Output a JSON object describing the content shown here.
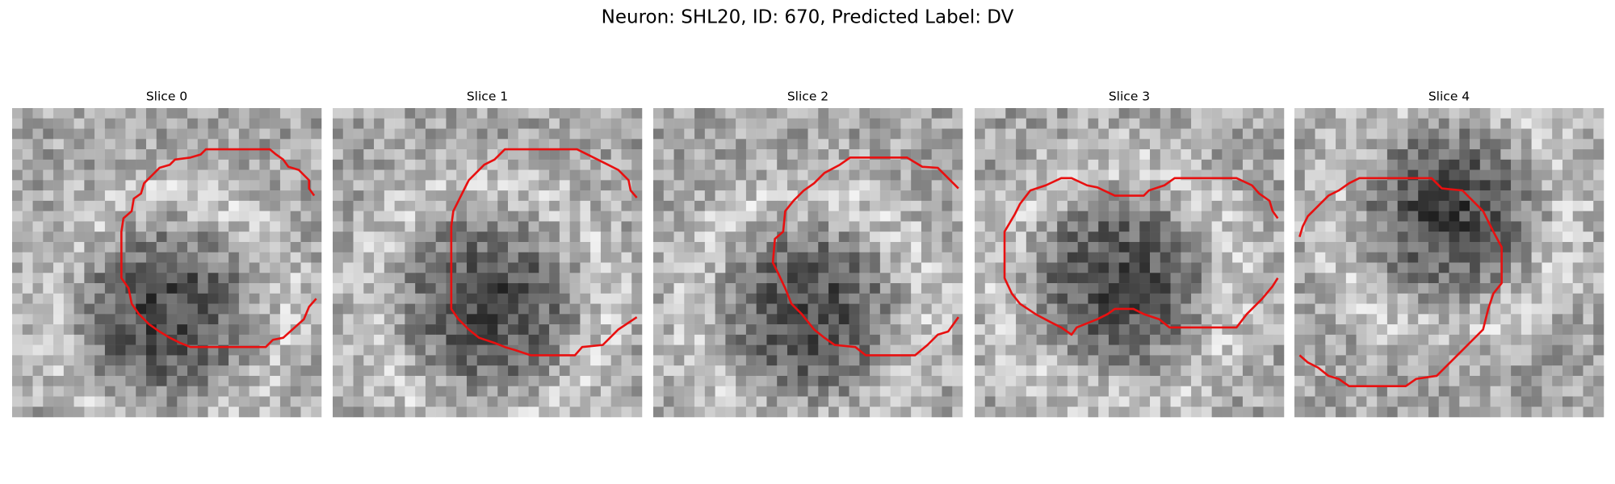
{
  "title": "Neuron: SHL20, ID: 670, Predicted Label: DV",
  "panels": [
    {
      "title": "Slice 0"
    },
    {
      "title": "Slice 1"
    },
    {
      "title": "Slice 2"
    },
    {
      "title": "Slice 3"
    },
    {
      "title": "Slice 4"
    }
  ]
}
